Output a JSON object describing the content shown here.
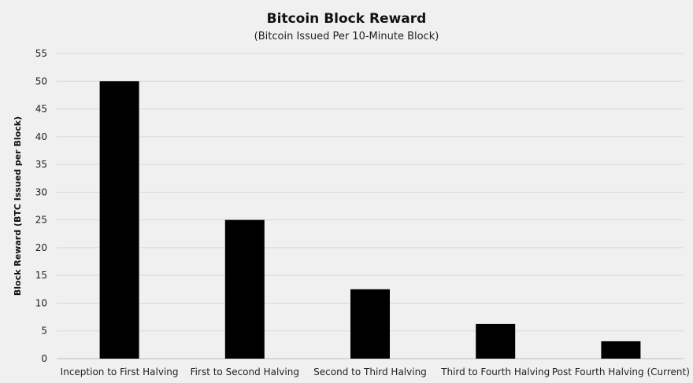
{
  "chart_data": {
    "type": "bar",
    "title": "Bitcoin Block Reward",
    "subtitle": "(Bitcoin Issued Per 10-Minute Block)",
    "xlabel": "",
    "ylabel": "Block Reward (BTC Issued per Block)",
    "categories": [
      "Inception to First Halving",
      "First to Second Halving",
      "Second to Third Halving",
      "Third to Fourth Halving",
      "Post Fourth Halving (Current)"
    ],
    "values": [
      50,
      25,
      12.5,
      6.25,
      3.125
    ],
    "ylim": [
      0,
      55
    ],
    "yticks": [
      "0",
      "5",
      "10",
      "15",
      "20",
      "25",
      "30",
      "35",
      "40",
      "45",
      "50",
      "55"
    ],
    "grid": true,
    "legend": "none",
    "colors": {
      "bar": "#000000",
      "background": "#f0f0f0",
      "grid": "#d8d8d8"
    }
  }
}
